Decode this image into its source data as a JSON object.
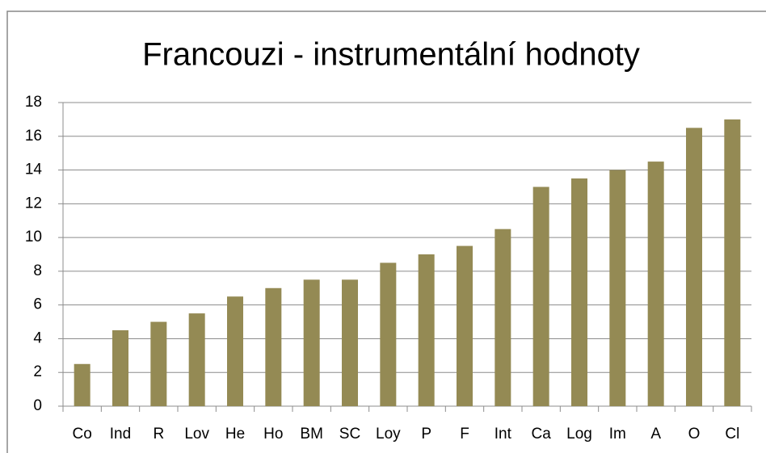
{
  "chart_data": {
    "type": "bar",
    "title": "Francouzi - instrumentální hodnoty",
    "categories": [
      "Co",
      "Ind",
      "R",
      "Lov",
      "He",
      "Ho",
      "BM",
      "SC",
      "Loy",
      "P",
      "F",
      "Int",
      "Ca",
      "Log",
      "Im",
      "A",
      "O",
      "Cl"
    ],
    "values": [
      2.5,
      4.5,
      5,
      5.5,
      6.5,
      7,
      7.5,
      7.5,
      8.5,
      9,
      9.5,
      10.5,
      13,
      13.5,
      14,
      14.5,
      16.5,
      17
    ],
    "color": "#948a54",
    "ylim": [
      0,
      18
    ],
    "yticks": [
      0,
      2,
      4,
      6,
      8,
      10,
      12,
      14,
      16,
      18
    ],
    "grid": true
  }
}
